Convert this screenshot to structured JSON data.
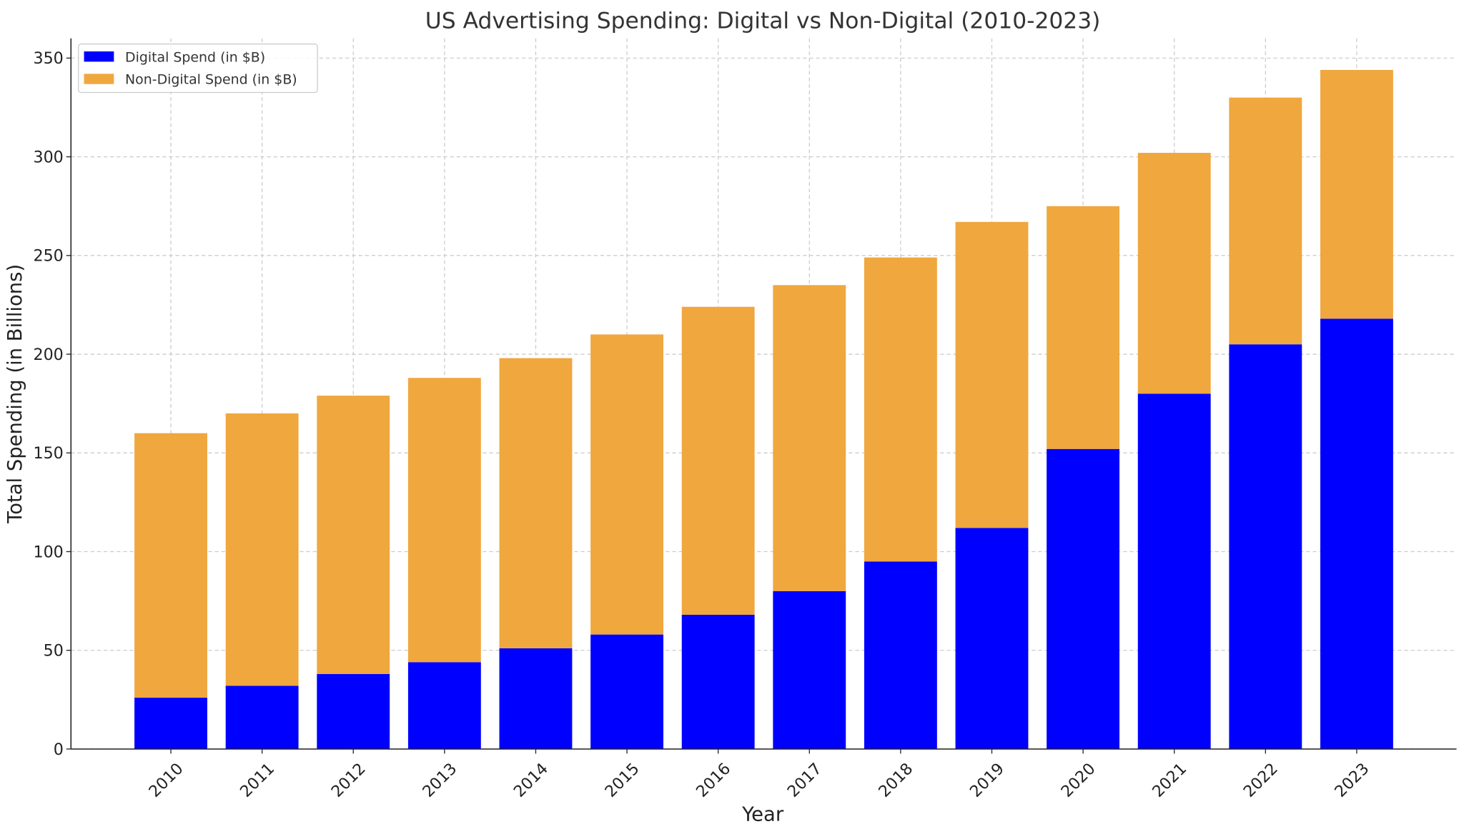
{
  "chart_data": {
    "type": "bar",
    "stacked": true,
    "title": "US Advertising Spending: Digital vs Non-Digital (2010-2023)",
    "xlabel": "Year",
    "ylabel": "Total Spending (in Billions)",
    "ylim": [
      0,
      360
    ],
    "yticks": [
      0,
      50,
      100,
      150,
      200,
      250,
      300,
      350
    ],
    "grid": true,
    "legend_position": "top-left",
    "categories": [
      "2010",
      "2011",
      "2012",
      "2013",
      "2014",
      "2015",
      "2016",
      "2017",
      "2018",
      "2019",
      "2020",
      "2021",
      "2022",
      "2023"
    ],
    "series": [
      {
        "name": "Digital Spend (in $B)",
        "color": "#0000ff",
        "values": [
          26,
          32,
          38,
          44,
          51,
          58,
          68,
          80,
          95,
          112,
          152,
          180,
          205,
          218
        ]
      },
      {
        "name": "Non-Digital Spend (in $B)",
        "color": "#f0a73e",
        "values": [
          134,
          138,
          141,
          144,
          147,
          152,
          156,
          155,
          154,
          155,
          123,
          122,
          125,
          126
        ]
      }
    ]
  }
}
